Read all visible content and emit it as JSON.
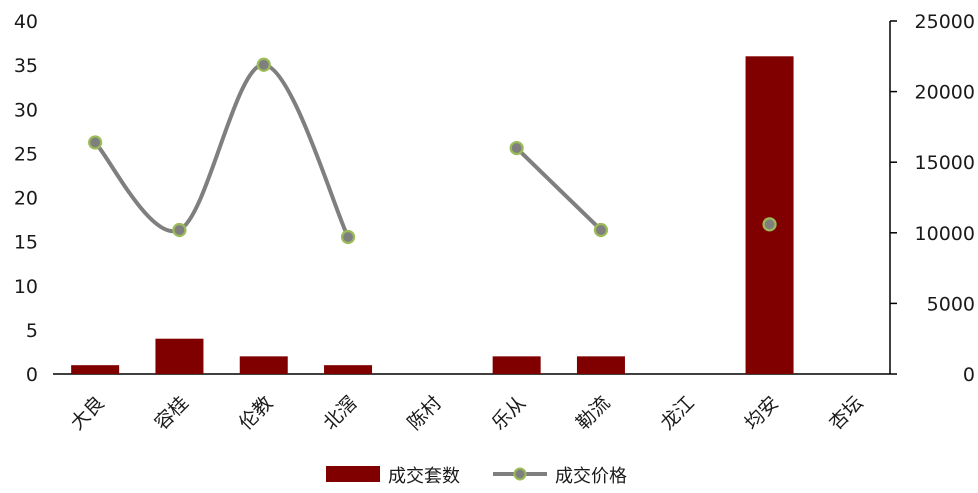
{
  "chart_data": {
    "type": "bar+line",
    "categories": [
      "大良",
      "容桂",
      "伦教",
      "北滘",
      "陈村",
      "乐从",
      "勒流",
      "龙江",
      "均安",
      "杏坛"
    ],
    "series": [
      {
        "name": "成交套数",
        "type": "bar",
        "axis": "left",
        "color": "#800000",
        "values": [
          1,
          4,
          2,
          1,
          0,
          2,
          2,
          0,
          36,
          0
        ]
      },
      {
        "name": "成交价格",
        "type": "line",
        "axis": "right",
        "color": "#7f7f7f",
        "marker_color": "#9bbb59",
        "smooth": true,
        "values": [
          16400,
          10200,
          21900,
          9700,
          null,
          16000,
          10200,
          null,
          10600,
          null
        ]
      }
    ],
    "y_left": {
      "ylim": [
        0,
        40
      ],
      "ticks": [
        "0",
        "5",
        "10",
        "15",
        "20",
        "25",
        "30",
        "35",
        "40"
      ]
    },
    "y_right": {
      "ylim": [
        0,
        25000
      ],
      "ticks": [
        "0",
        "5000",
        "10000",
        "15000",
        "20000",
        "25000"
      ]
    },
    "grid": false,
    "legend": "bottom"
  }
}
